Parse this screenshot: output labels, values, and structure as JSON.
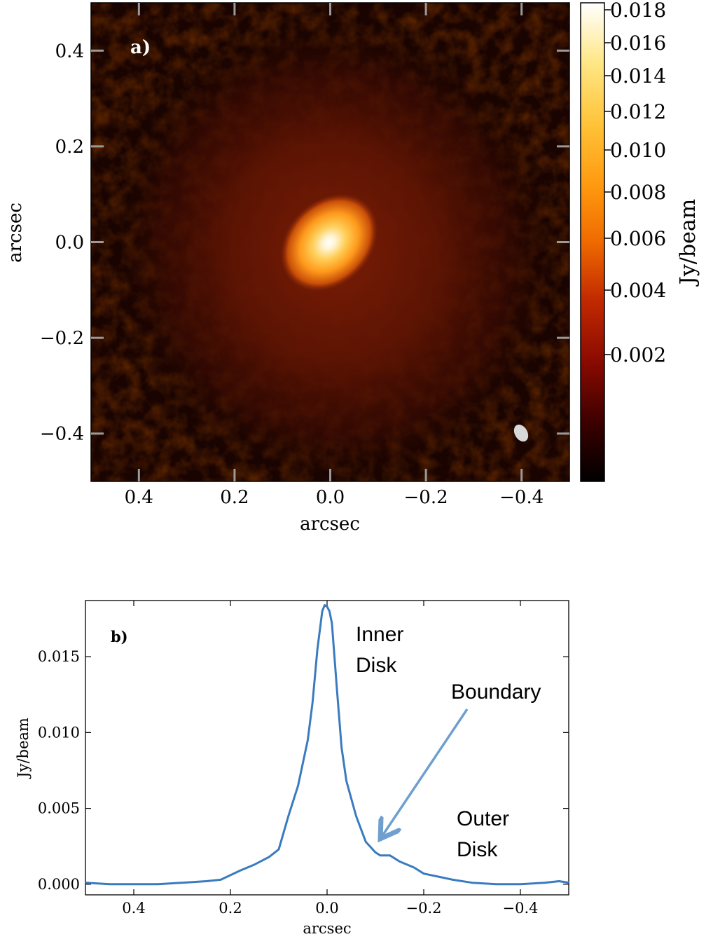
{
  "panel_a": {
    "label": "a)",
    "xlabel": "arcsec",
    "ylabel": "arcsec",
    "x_ticks": [
      "0.4",
      "0.2",
      "0.0",
      "−0.2",
      "−0.4"
    ],
    "y_ticks": [
      "0.4",
      "0.2",
      "0.0",
      "−0.2",
      "−0.4"
    ],
    "colorbar": {
      "label": "Jy/beam",
      "ticks": [
        "0.018",
        "0.016",
        "0.014",
        "0.012",
        "0.010",
        "0.008",
        "0.006",
        "0.004",
        "0.002"
      ]
    }
  },
  "panel_b": {
    "label": "b)",
    "xlabel": "arcsec",
    "ylabel": "Jy/beam",
    "x_ticks": [
      "0.4",
      "0.2",
      "0.0",
      "−0.2",
      "−0.4"
    ],
    "y_ticks": [
      "0.000",
      "0.005",
      "0.010",
      "0.015"
    ],
    "annotations": {
      "inner": [
        "Inner",
        "Disk"
      ],
      "boundary": "Boundary",
      "outer": [
        "Outer",
        "Disk"
      ]
    },
    "line_color": "#3a7bbf",
    "arrow_color": "#6f9fcf"
  },
  "chart_data": [
    {
      "type": "heatmap",
      "title": "",
      "xlabel": "arcsec",
      "ylabel": "arcsec",
      "xlim": [
        0.5,
        -0.5
      ],
      "ylim": [
        -0.5,
        0.5
      ],
      "colormap": "afmhot",
      "colorbar_label": "Jy/beam",
      "colorbar_range": [
        0.0,
        0.018
      ],
      "peak": {
        "x": 0.0,
        "y": 0.0,
        "value": 0.0185
      },
      "beam": {
        "x": -0.4,
        "y": -0.4
      }
    },
    {
      "type": "line",
      "title": "",
      "xlabel": "arcsec",
      "ylabel": "Jy/beam",
      "xlim": [
        0.5,
        -0.5
      ],
      "ylim": [
        -0.0007,
        0.0187
      ],
      "series": [
        {
          "x": [
            0.5,
            0.45,
            0.4,
            0.35,
            0.3,
            0.25,
            0.22,
            0.2,
            0.18,
            0.15,
            0.12,
            0.1,
            0.08,
            0.06,
            0.04,
            0.03,
            0.02,
            0.01,
            0.005,
            0.0,
            -0.005,
            -0.01,
            -0.02,
            -0.03,
            -0.04,
            -0.06,
            -0.08,
            -0.1,
            -0.11,
            -0.13,
            -0.15,
            -0.18,
            -0.2,
            -0.23,
            -0.26,
            -0.3,
            -0.35,
            -0.4,
            -0.45,
            -0.48,
            -0.5
          ],
          "y": [
            0.0001,
            0.0,
            0.0,
            0.0,
            0.0001,
            0.0002,
            0.0003,
            0.0006,
            0.0009,
            0.0013,
            0.0018,
            0.0023,
            0.0045,
            0.0065,
            0.0095,
            0.012,
            0.0155,
            0.018,
            0.0184,
            0.0183,
            0.018,
            0.0172,
            0.013,
            0.009,
            0.0068,
            0.0045,
            0.0028,
            0.0021,
            0.0019,
            0.0019,
            0.0015,
            0.0011,
            0.0007,
            0.0005,
            0.0003,
            0.0001,
            0.0,
            0.0,
            0.0001,
            0.0002,
            0.0001
          ]
        }
      ]
    }
  ]
}
